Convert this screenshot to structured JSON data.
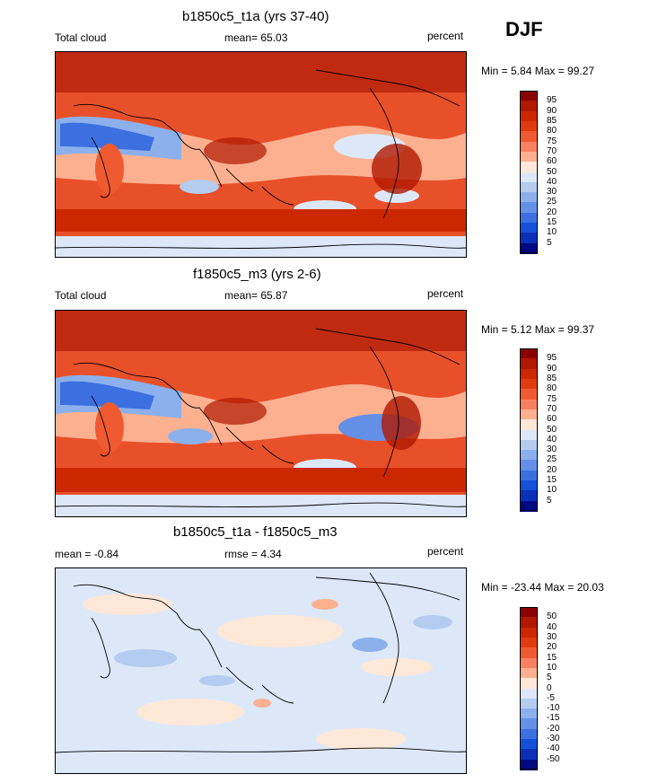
{
  "season": "DJF",
  "units": "percent",
  "panels": [
    {
      "title": "b1850c5_t1a (yrs 37-40)",
      "left_label": "Total cloud",
      "center_label": "mean=  65.03",
      "right_label": "percent",
      "minmax": "Min =   5.84 Max =  99.27",
      "colorbar_levels": [
        "95",
        "90",
        "85",
        "80",
        "75",
        "70",
        "60",
        "50",
        "40",
        "30",
        "25",
        "20",
        "15",
        "10",
        "5"
      ],
      "colors": [
        "#8b0000",
        "#b01800",
        "#cc2800",
        "#e03c10",
        "#f05a30",
        "#f88060",
        "#fcb090",
        "#ffe8d8",
        "#dce8f8",
        "#b4ccf0",
        "#8cb0ec",
        "#6490e8",
        "#3c70e0",
        "#1450d8",
        "#0a30b8",
        "#000a80"
      ]
    },
    {
      "title": "f1850c5_m3 (yrs 2-6)",
      "left_label": "Total cloud",
      "center_label": "mean=  65.87",
      "right_label": "percent",
      "minmax": "Min =   5.12 Max =  99.37",
      "colorbar_levels": [
        "95",
        "90",
        "85",
        "80",
        "75",
        "70",
        "60",
        "50",
        "40",
        "30",
        "25",
        "20",
        "15",
        "10",
        "5"
      ],
      "colors": [
        "#8b0000",
        "#b01800",
        "#cc2800",
        "#e03c10",
        "#f05a30",
        "#f88060",
        "#fcb090",
        "#ffe8d8",
        "#dce8f8",
        "#b4ccf0",
        "#8cb0ec",
        "#6490e8",
        "#3c70e0",
        "#1450d8",
        "#0a30b8",
        "#000a80"
      ]
    },
    {
      "title": "b1850c5_t1a - f1850c5_m3",
      "left_label": "mean =  -0.84",
      "center_label": "rmse =   4.34",
      "right_label": "percent",
      "minmax": "Min = -23.44 Max =  20.03",
      "colorbar_levels": [
        "50",
        "40",
        "30",
        "20",
        "15",
        "10",
        "5",
        "0",
        "-5",
        "-10",
        "-15",
        "-20",
        "-30",
        "-40",
        "-50"
      ],
      "colors": [
        "#8b0000",
        "#b01800",
        "#cc2800",
        "#e03c10",
        "#f05a30",
        "#f88060",
        "#fcb090",
        "#ffe8d8",
        "#dce8f8",
        "#b4ccf0",
        "#8cb0ec",
        "#6490e8",
        "#3c70e0",
        "#1450d8",
        "#0a30b8",
        "#000a80"
      ]
    }
  ]
}
